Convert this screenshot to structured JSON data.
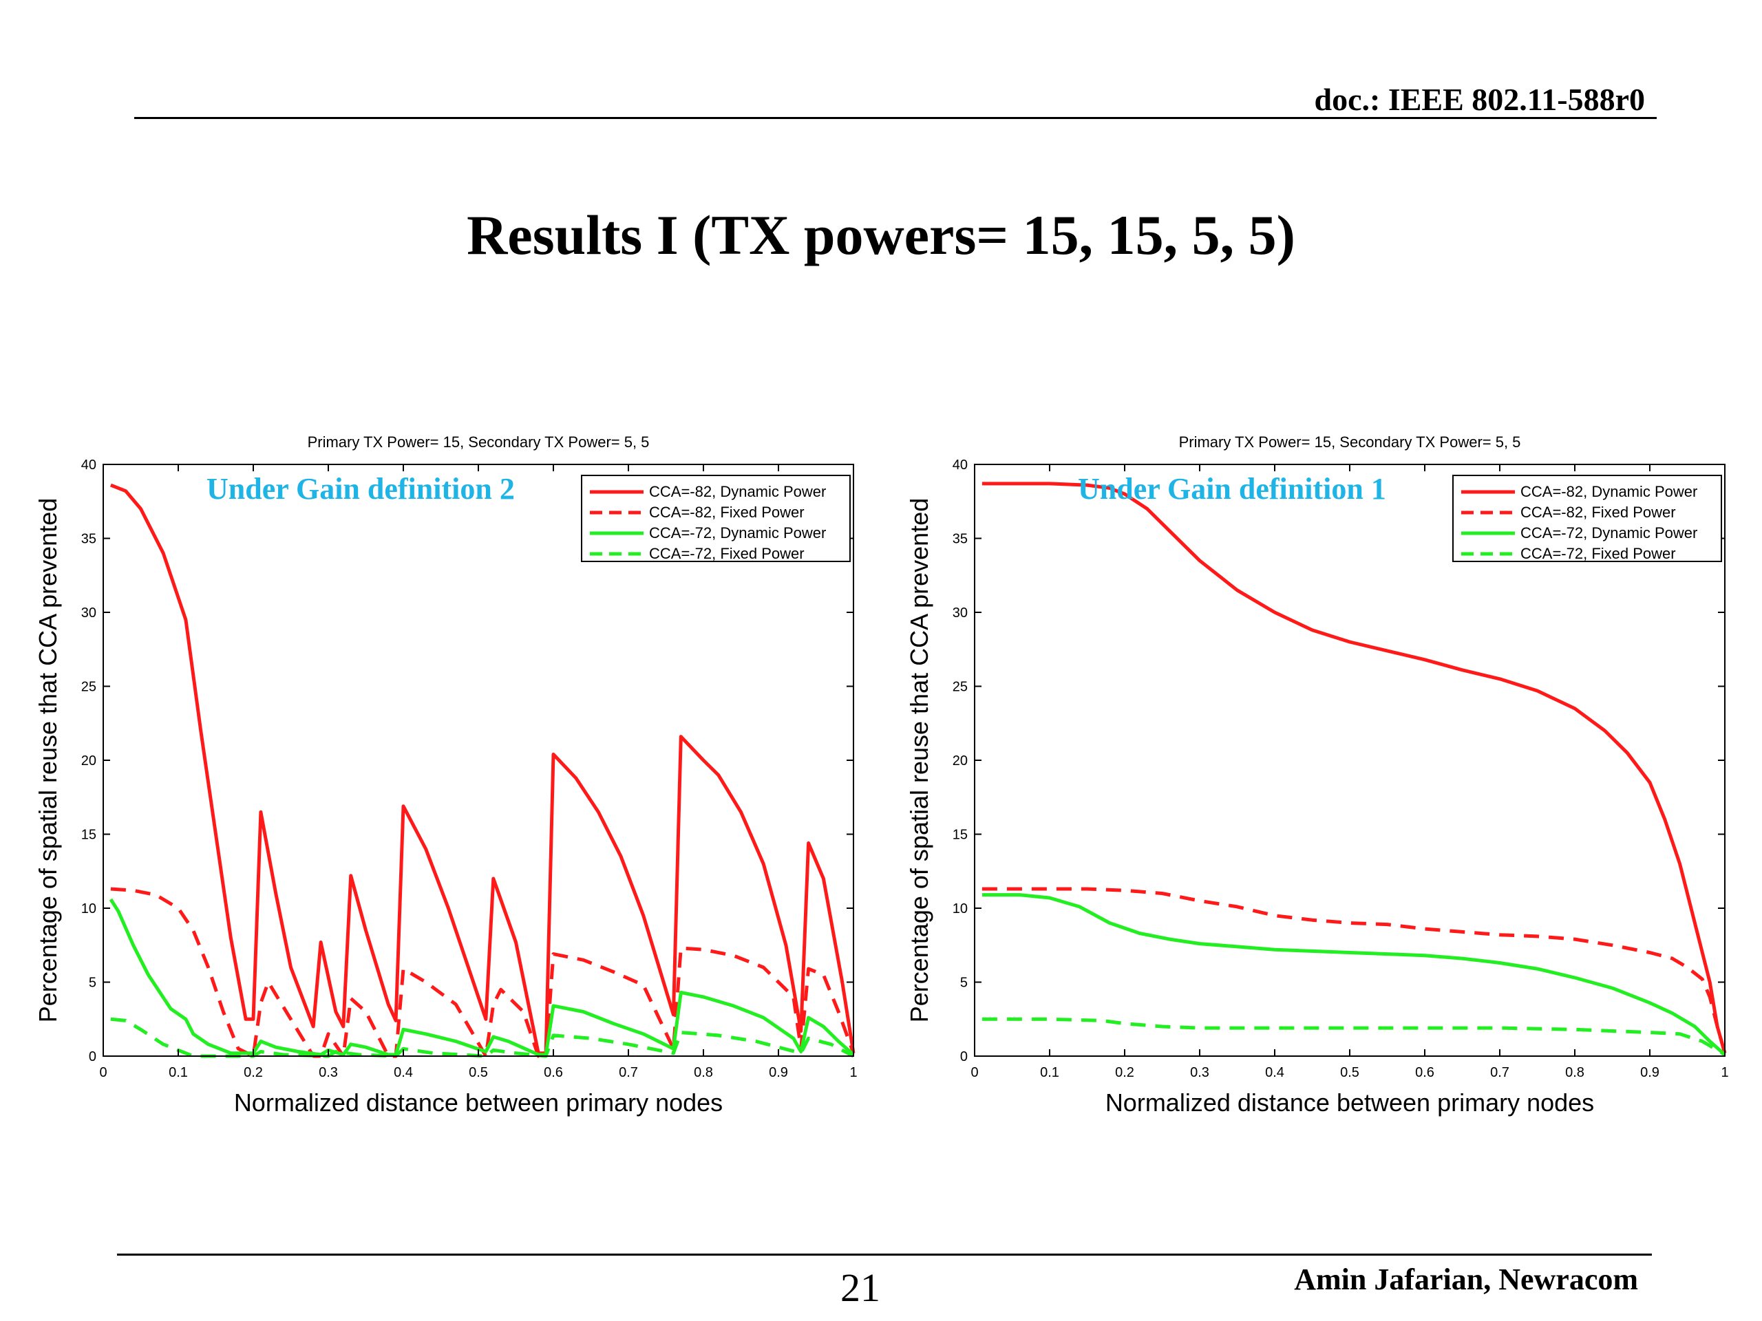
{
  "header": {
    "doc_id": "doc.: IEEE 802.11-588r0"
  },
  "title": "Results I (TX powers= 15, 15, 5, 5)",
  "footer": {
    "page_number": "21",
    "author": "Amin Jafarian, Newracom"
  },
  "colors": {
    "red": "#ff1a1a",
    "green": "#22ee22",
    "annotation": "#1fb4e6"
  },
  "chart_data": [
    {
      "type": "line",
      "title": "Primary TX Power= 15, Secondary TX Power= 5, 5",
      "annotation": "Under Gain definition 2",
      "xlabel": "Normalized distance between primary nodes",
      "ylabel": "Percentage of spatial reuse that CCA prevented",
      "xlim": [
        0,
        1
      ],
      "ylim": [
        0,
        40
      ],
      "xticks": [
        "0",
        "0.1",
        "0.2",
        "0.3",
        "0.4",
        "0.5",
        "0.6",
        "0.7",
        "0.8",
        "0.9",
        "1"
      ],
      "yticks": [
        "0",
        "5",
        "10",
        "15",
        "20",
        "25",
        "30",
        "35",
        "40"
      ],
      "grid": false,
      "legend_position": "top-right",
      "series": [
        {
          "name": "CCA=-82, Dynamic Power",
          "color": "#ff1a1a",
          "dash": "solid",
          "x": [
            0.01,
            0.03,
            0.05,
            0.08,
            0.11,
            0.13,
            0.15,
            0.17,
            0.19,
            0.2,
            0.21,
            0.23,
            0.25,
            0.28,
            0.29,
            0.31,
            0.32,
            0.33,
            0.35,
            0.38,
            0.39,
            0.4,
            0.43,
            0.46,
            0.49,
            0.51,
            0.52,
            0.55,
            0.58,
            0.59,
            0.6,
            0.63,
            0.66,
            0.69,
            0.72,
            0.76,
            0.77,
            0.8,
            0.82,
            0.85,
            0.88,
            0.91,
            0.93,
            0.94,
            0.96,
            0.985,
            1.0
          ],
          "y": [
            38.6,
            38.2,
            37,
            34,
            29.5,
            22,
            15,
            8,
            2.5,
            2.5,
            16.5,
            11,
            6,
            2,
            7.7,
            3,
            2,
            12.2,
            8.5,
            3.5,
            2.4,
            16.9,
            14,
            10,
            5.5,
            2.5,
            12,
            7.7,
            0.2,
            0.2,
            20.4,
            18.8,
            16.5,
            13.5,
            9.5,
            2.8,
            21.6,
            20,
            19,
            16.5,
            13,
            7.5,
            1.7,
            14.4,
            12,
            5,
            0.2
          ]
        },
        {
          "name": "CCA=-82, Fixed Power",
          "color": "#ff1a1a",
          "dash": "dashed",
          "x": [
            0.01,
            0.04,
            0.07,
            0.1,
            0.12,
            0.14,
            0.16,
            0.18,
            0.2,
            0.21,
            0.22,
            0.25,
            0.28,
            0.29,
            0.3,
            0.32,
            0.33,
            0.35,
            0.38,
            0.39,
            0.4,
            0.43,
            0.47,
            0.51,
            0.52,
            0.53,
            0.56,
            0.58,
            0.59,
            0.6,
            0.64,
            0.68,
            0.72,
            0.76,
            0.77,
            0.8,
            0.84,
            0.88,
            0.92,
            0.93,
            0.94,
            0.96,
            0.98,
            1.0
          ],
          "y": [
            11.3,
            11.2,
            10.9,
            10,
            8.5,
            6,
            3,
            0.5,
            0,
            3.6,
            5,
            2.5,
            0,
            0,
            1.5,
            0,
            3.9,
            3,
            0,
            0,
            5.9,
            5,
            3.5,
            0,
            3.5,
            4.5,
            3,
            0,
            0,
            6.9,
            6.5,
            5.7,
            4.8,
            0.5,
            7.3,
            7.2,
            6.8,
            6,
            4,
            0.5,
            5.9,
            5.5,
            3,
            0.2
          ]
        },
        {
          "name": "CCA=-72, Dynamic Power",
          "color": "#22ee22",
          "dash": "solid",
          "x": [
            0.01,
            0.02,
            0.04,
            0.06,
            0.09,
            0.11,
            0.12,
            0.14,
            0.17,
            0.2,
            0.21,
            0.23,
            0.26,
            0.29,
            0.3,
            0.32,
            0.33,
            0.35,
            0.38,
            0.39,
            0.4,
            0.43,
            0.47,
            0.51,
            0.52,
            0.54,
            0.58,
            0.59,
            0.6,
            0.64,
            0.68,
            0.72,
            0.76,
            0.77,
            0.8,
            0.84,
            0.88,
            0.92,
            0.93,
            0.94,
            0.96,
            0.98,
            1.0
          ],
          "y": [
            10.6,
            9.8,
            7.5,
            5.5,
            3.2,
            2.5,
            1.5,
            0.8,
            0.2,
            0.2,
            1,
            0.6,
            0.3,
            0.1,
            0.4,
            0.1,
            0.8,
            0.6,
            0.1,
            0.1,
            1.8,
            1.5,
            1,
            0.3,
            1.3,
            1,
            0.1,
            0.1,
            3.4,
            3,
            2.2,
            1.5,
            0.5,
            4.3,
            4,
            3.4,
            2.6,
            1.2,
            0.3,
            2.6,
            2,
            1,
            0.1
          ]
        },
        {
          "name": "CCA=-72, Fixed Power",
          "color": "#22ee22",
          "dash": "dashed",
          "x": [
            0.01,
            0.03,
            0.05,
            0.08,
            0.11,
            0.12,
            0.15,
            0.2,
            0.21,
            0.24,
            0.3,
            0.31,
            0.34,
            0.39,
            0.4,
            0.44,
            0.51,
            0.52,
            0.55,
            0.59,
            0.6,
            0.65,
            0.7,
            0.76,
            0.77,
            0.82,
            0.87,
            0.93,
            0.94,
            0.97,
            1.0
          ],
          "y": [
            2.5,
            2.4,
            1.8,
            0.8,
            0.2,
            0,
            0,
            0,
            0.3,
            0.1,
            0,
            0.3,
            0.1,
            0,
            0.5,
            0.2,
            0,
            0.4,
            0.2,
            0,
            1.4,
            1.2,
            0.8,
            0.2,
            1.6,
            1.4,
            1,
            0.2,
            1.2,
            0.8,
            0
          ]
        }
      ]
    },
    {
      "type": "line",
      "title": "Primary TX Power= 15, Secondary TX Power= 5, 5",
      "annotation": "Under Gain definition 1",
      "xlabel": "Normalized distance between primary nodes",
      "ylabel": "Percentage of spatial reuse that CCA prevented",
      "xlim": [
        0,
        1
      ],
      "ylim": [
        0,
        40
      ],
      "xticks": [
        "0",
        "0.1",
        "0.2",
        "0.3",
        "0.4",
        "0.5",
        "0.6",
        "0.7",
        "0.8",
        "0.9",
        "1"
      ],
      "yticks": [
        "0",
        "5",
        "10",
        "15",
        "20",
        "25",
        "30",
        "35",
        "40"
      ],
      "grid": false,
      "legend_position": "top-right",
      "series": [
        {
          "name": "CCA=-82, Dynamic Power",
          "color": "#ff1a1a",
          "dash": "solid",
          "x": [
            0.01,
            0.1,
            0.15,
            0.18,
            0.2,
            0.23,
            0.26,
            0.3,
            0.35,
            0.4,
            0.45,
            0.5,
            0.55,
            0.6,
            0.65,
            0.7,
            0.75,
            0.8,
            0.84,
            0.87,
            0.9,
            0.92,
            0.94,
            0.96,
            0.98,
            0.99,
            1.0
          ],
          "y": [
            38.7,
            38.7,
            38.6,
            38.4,
            38,
            37,
            35.5,
            33.5,
            31.5,
            30,
            28.8,
            28,
            27.4,
            26.8,
            26.1,
            25.5,
            24.7,
            23.5,
            22,
            20.5,
            18.5,
            16,
            13,
            9,
            5,
            2,
            0.2
          ]
        },
        {
          "name": "CCA=-82, Fixed Power",
          "color": "#ff1a1a",
          "dash": "dashed",
          "x": [
            0.01,
            0.1,
            0.15,
            0.2,
            0.25,
            0.3,
            0.35,
            0.4,
            0.45,
            0.5,
            0.55,
            0.6,
            0.65,
            0.7,
            0.75,
            0.8,
            0.85,
            0.9,
            0.93,
            0.95,
            0.97,
            0.98,
            0.99,
            1.0
          ],
          "y": [
            11.3,
            11.3,
            11.3,
            11.2,
            11,
            10.5,
            10.1,
            9.5,
            9.2,
            9,
            8.9,
            8.6,
            8.4,
            8.2,
            8.1,
            7.9,
            7.5,
            7,
            6.6,
            6,
            5.2,
            4,
            2,
            0.2
          ]
        },
        {
          "name": "CCA=-72, Dynamic Power",
          "color": "#22ee22",
          "dash": "solid",
          "x": [
            0.01,
            0.06,
            0.1,
            0.14,
            0.18,
            0.22,
            0.26,
            0.3,
            0.35,
            0.4,
            0.45,
            0.5,
            0.55,
            0.6,
            0.65,
            0.7,
            0.75,
            0.8,
            0.85,
            0.9,
            0.93,
            0.96,
            0.98,
            1.0
          ],
          "y": [
            10.9,
            10.9,
            10.7,
            10.1,
            9,
            8.3,
            7.9,
            7.6,
            7.4,
            7.2,
            7.1,
            7,
            6.9,
            6.8,
            6.6,
            6.3,
            5.9,
            5.3,
            4.6,
            3.6,
            2.9,
            2,
            1,
            0.1
          ]
        },
        {
          "name": "CCA=-72, Fixed Power",
          "color": "#22ee22",
          "dash": "dashed",
          "x": [
            0.01,
            0.1,
            0.17,
            0.2,
            0.25,
            0.3,
            0.4,
            0.5,
            0.6,
            0.7,
            0.8,
            0.85,
            0.9,
            0.94,
            0.97,
            1.0
          ],
          "y": [
            2.5,
            2.5,
            2.4,
            2.2,
            2,
            1.9,
            1.9,
            1.9,
            1.9,
            1.9,
            1.8,
            1.7,
            1.6,
            1.5,
            1,
            0.1
          ]
        }
      ]
    }
  ]
}
